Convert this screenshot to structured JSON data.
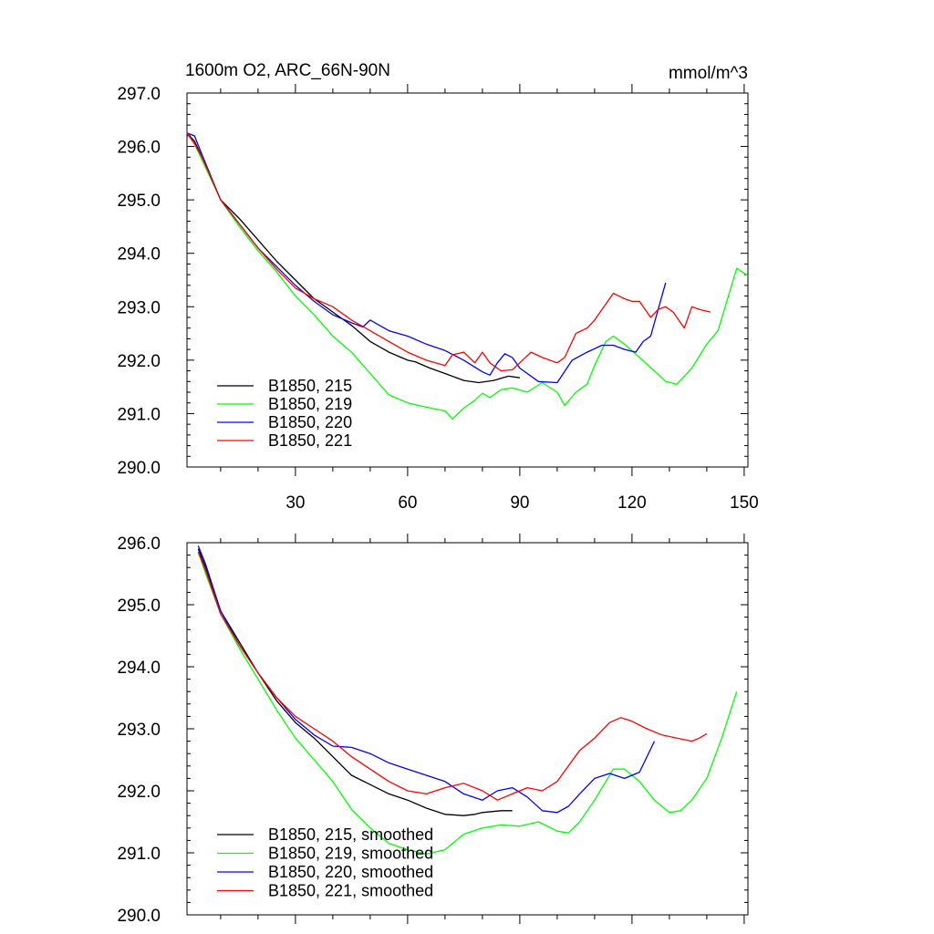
{
  "chart_data": [
    {
      "type": "line",
      "title": "1600m O2, ARC_66N-90N",
      "units": "mmol/m^3",
      "xlim": [
        1,
        151
      ],
      "ylim": [
        290,
        297
      ],
      "xticks": [
        30,
        60,
        90,
        120,
        150
      ],
      "yticks": [
        290.0,
        291.0,
        292.0,
        293.0,
        294.0,
        295.0,
        296.0,
        297.0
      ],
      "ytick_labels": [
        "290.0",
        "291.0",
        "292.0",
        "293.0",
        "294.0",
        "295.0",
        "296.0",
        "297.0"
      ],
      "xtick_labels": [
        "30",
        "60",
        "90",
        "120",
        "150"
      ],
      "legend_position": "bottom-left",
      "series": [
        {
          "name": "B1850, 215",
          "color": "#000000",
          "x": [
            1,
            3,
            5,
            10,
            15,
            20,
            25,
            30,
            35,
            40,
            45,
            50,
            55,
            60,
            62,
            66,
            70,
            75,
            79,
            83,
            87,
            90
          ],
          "y": [
            296.25,
            296.1,
            295.8,
            295.0,
            294.65,
            294.25,
            293.85,
            293.5,
            293.15,
            292.9,
            292.65,
            292.35,
            292.15,
            292.0,
            291.97,
            291.85,
            291.75,
            291.62,
            291.58,
            291.62,
            291.7,
            291.67
          ]
        },
        {
          "name": "B1850, 219",
          "color": "#00ff00",
          "x": [
            1,
            3,
            5,
            10,
            15,
            20,
            25,
            30,
            35,
            40,
            45,
            50,
            55,
            60,
            65,
            70,
            72,
            75,
            78,
            80,
            82,
            85,
            88,
            92,
            96,
            100,
            102,
            105,
            108,
            110,
            113,
            115,
            118,
            122,
            126,
            129,
            132,
            136,
            140,
            143,
            146,
            148,
            151
          ],
          "y": [
            296.25,
            296.05,
            295.75,
            295.0,
            294.5,
            294.05,
            293.65,
            293.2,
            292.85,
            292.45,
            292.15,
            291.75,
            291.35,
            291.2,
            291.12,
            291.05,
            290.9,
            291.1,
            291.25,
            291.38,
            291.3,
            291.45,
            291.48,
            291.4,
            291.58,
            291.4,
            291.15,
            291.4,
            291.55,
            291.9,
            292.35,
            292.45,
            292.3,
            292.05,
            291.8,
            291.6,
            291.55,
            291.85,
            292.3,
            292.55,
            293.25,
            293.72,
            293.58
          ]
        },
        {
          "name": "B1850, 220",
          "color": "#0000ff",
          "x": [
            1,
            3,
            5,
            10,
            15,
            20,
            25,
            30,
            35,
            40,
            45,
            48,
            50,
            55,
            60,
            65,
            70,
            75,
            80,
            82,
            84,
            86,
            88,
            90,
            95,
            100,
            104,
            108,
            112,
            115,
            118,
            121,
            123,
            125,
            127,
            129
          ],
          "y": [
            296.25,
            296.2,
            295.85,
            295.0,
            294.55,
            294.1,
            293.75,
            293.4,
            293.1,
            292.85,
            292.7,
            292.62,
            292.75,
            292.55,
            292.45,
            292.3,
            292.18,
            292.0,
            291.78,
            291.72,
            291.95,
            292.12,
            292.05,
            291.85,
            291.6,
            291.58,
            292.0,
            292.15,
            292.28,
            292.28,
            292.2,
            292.15,
            292.35,
            292.45,
            292.95,
            293.45
          ]
        },
        {
          "name": "B1850, 221",
          "color": "#ff0000",
          "x": [
            1,
            3,
            5,
            10,
            15,
            20,
            25,
            30,
            35,
            40,
            45,
            50,
            55,
            60,
            65,
            70,
            72,
            75,
            78,
            80,
            82,
            85,
            88,
            90,
            93,
            96,
            100,
            102,
            105,
            108,
            110,
            113,
            115,
            118,
            120,
            122,
            125,
            127,
            129,
            131,
            134,
            136,
            138,
            141
          ],
          "y": [
            296.25,
            296.05,
            295.8,
            295.0,
            294.55,
            294.1,
            293.7,
            293.35,
            293.15,
            293.0,
            292.75,
            292.55,
            292.35,
            292.15,
            292.0,
            291.9,
            292.1,
            292.15,
            291.95,
            292.15,
            291.95,
            291.8,
            291.82,
            291.95,
            292.15,
            292.05,
            291.95,
            292.05,
            292.5,
            292.6,
            292.75,
            293.05,
            293.25,
            293.15,
            293.1,
            293.1,
            292.8,
            292.95,
            293.0,
            292.9,
            292.6,
            293.0,
            292.95,
            292.9
          ]
        }
      ]
    },
    {
      "type": "line",
      "title": "",
      "units": "",
      "xlim": [
        1,
        151
      ],
      "ylim": [
        290,
        296
      ],
      "xticks": [
        30,
        60,
        90,
        120,
        150
      ],
      "yticks": [
        290.0,
        291.0,
        292.0,
        293.0,
        294.0,
        295.0,
        296.0
      ],
      "ytick_labels": [
        "290.0",
        "291.0",
        "292.0",
        "293.0",
        "294.0",
        "295.0",
        "296.0"
      ],
      "xtick_labels": [],
      "legend_position": "bottom-left",
      "series": [
        {
          "name": "B1850, 215, smoothed",
          "color": "#000000",
          "x": [
            4,
            6,
            10,
            15,
            20,
            25,
            30,
            35,
            40,
            45,
            50,
            55,
            60,
            65,
            70,
            75,
            78,
            80,
            85,
            88
          ],
          "y": [
            295.9,
            295.6,
            294.9,
            294.4,
            293.9,
            293.45,
            293.1,
            292.85,
            292.55,
            292.25,
            292.1,
            291.95,
            291.85,
            291.72,
            291.62,
            291.6,
            291.62,
            291.65,
            291.68,
            291.68
          ]
        },
        {
          "name": "B1850, 219, smoothed",
          "color": "#00ff00",
          "x": [
            4,
            6,
            10,
            15,
            20,
            25,
            30,
            35,
            40,
            45,
            50,
            55,
            60,
            65,
            70,
            75,
            80,
            85,
            90,
            95,
            100,
            103,
            106,
            110,
            115,
            118,
            122,
            126,
            130,
            133,
            136,
            140,
            144,
            148
          ],
          "y": [
            295.85,
            295.5,
            294.85,
            294.3,
            293.8,
            293.3,
            292.85,
            292.5,
            292.15,
            291.7,
            291.4,
            291.15,
            291.05,
            290.98,
            291.05,
            291.3,
            291.4,
            291.45,
            291.43,
            291.5,
            291.35,
            291.32,
            291.5,
            291.85,
            292.35,
            292.35,
            292.15,
            291.85,
            291.65,
            291.68,
            291.85,
            292.2,
            292.85,
            293.6
          ]
        },
        {
          "name": "B1850, 220, smoothed",
          "color": "#0000ff",
          "x": [
            4,
            6,
            10,
            15,
            20,
            25,
            30,
            35,
            40,
            45,
            50,
            55,
            60,
            65,
            70,
            75,
            80,
            84,
            88,
            92,
            96,
            100,
            103,
            106,
            110,
            114,
            118,
            122,
            124,
            126
          ],
          "y": [
            295.95,
            295.65,
            294.9,
            294.35,
            293.9,
            293.5,
            293.15,
            292.9,
            292.72,
            292.7,
            292.6,
            292.45,
            292.35,
            292.25,
            292.15,
            291.95,
            291.85,
            292.0,
            292.05,
            291.9,
            291.68,
            291.65,
            291.75,
            291.95,
            292.2,
            292.28,
            292.2,
            292.3,
            292.55,
            292.8
          ]
        },
        {
          "name": "B1850, 221, smoothed",
          "color": "#ff0000",
          "x": [
            4,
            6,
            10,
            15,
            20,
            25,
            30,
            35,
            40,
            45,
            50,
            55,
            60,
            65,
            70,
            75,
            80,
            84,
            88,
            92,
            96,
            100,
            103,
            106,
            110,
            114,
            117,
            120,
            124,
            128,
            132,
            136,
            138,
            140
          ],
          "y": [
            295.85,
            295.55,
            294.85,
            294.35,
            293.9,
            293.5,
            293.2,
            293.0,
            292.8,
            292.55,
            292.35,
            292.15,
            292.0,
            291.95,
            292.05,
            292.12,
            292.0,
            291.85,
            291.95,
            292.05,
            292.0,
            292.15,
            292.4,
            292.65,
            292.85,
            293.1,
            293.18,
            293.12,
            293.0,
            292.9,
            292.85,
            292.8,
            292.85,
            292.92
          ]
        }
      ]
    }
  ]
}
